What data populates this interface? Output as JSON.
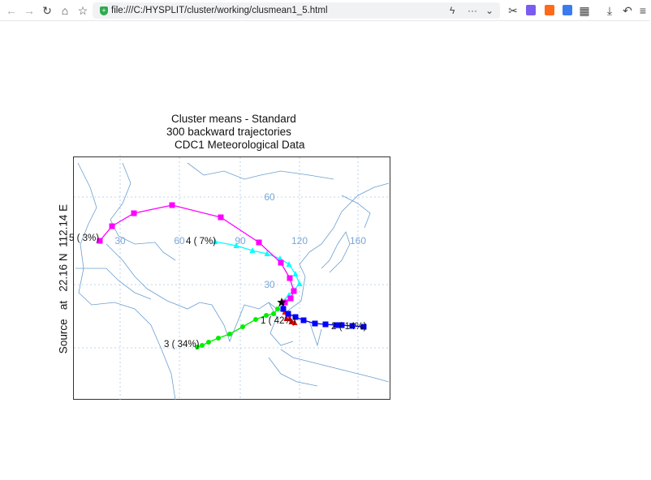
{
  "browser": {
    "url": "file:///C:/HYSPLIT/cluster/working/clusmean1_5.html",
    "icons": [
      "back-icon",
      "forward-icon",
      "reload-icon",
      "home-icon",
      "favorites-icon",
      "lightning-icon",
      "more-icon",
      "chevron-down-icon",
      "scissors-icon",
      "extension-icon",
      "extension-icon",
      "extension-icon",
      "apps-icon",
      "download-icon",
      "undo-icon",
      "menu-icon"
    ]
  },
  "plot": {
    "title_lines": [
      "Cluster means - Standard",
      "300 backward trajectories",
      "CDC1 Meteorological Data"
    ],
    "source_label": "Source   at   22.16 N  112.14 E",
    "lon_labels": [
      "30",
      "60",
      "90",
      "120",
      "160"
    ],
    "lat_labels": [
      "60",
      "30"
    ],
    "clusters": [
      {
        "label": "1 ( 42%)",
        "color": "#ff0000"
      },
      {
        "label": "2 ( 14%)",
        "color": "#0000ff"
      },
      {
        "label": "3 ( 34%)",
        "color": "#00ee00"
      },
      {
        "label": "4 (  7%)",
        "color": "#00ffff"
      },
      {
        "label": "5 (  3%)",
        "color": "#ff00ff"
      }
    ],
    "grid_color": "#a8c8e8",
    "coast_color": "#6a9ed0"
  }
}
